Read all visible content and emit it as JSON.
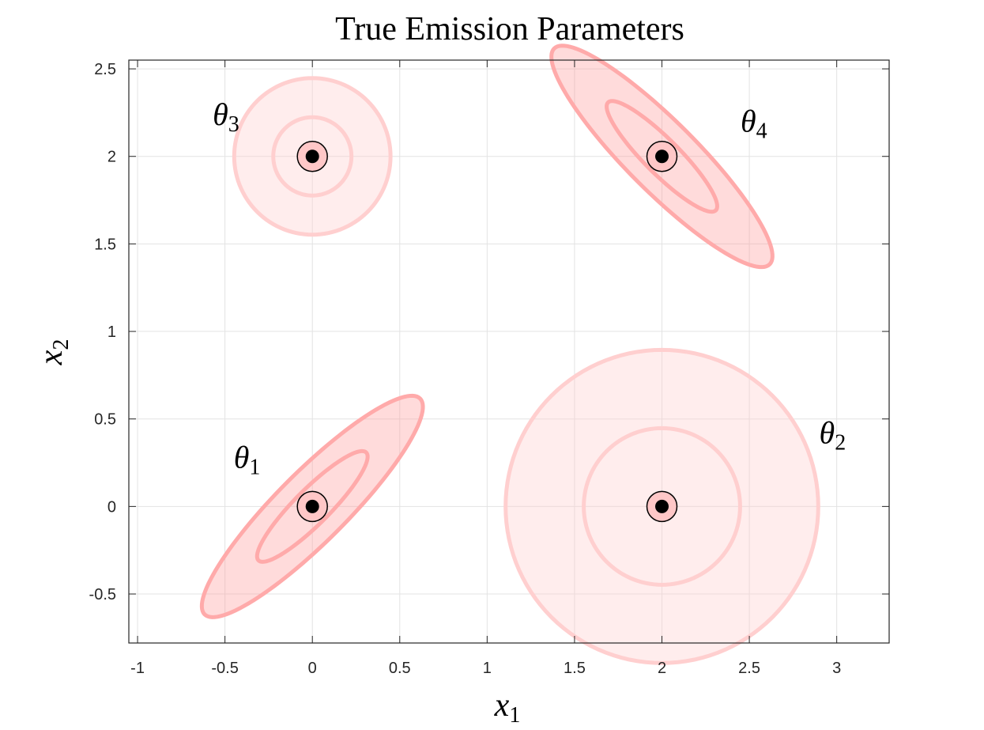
{
  "chart_data": {
    "type": "scatter",
    "title": "True Emission Parameters",
    "xlabel": {
      "base": "x",
      "sub": "1"
    },
    "ylabel": {
      "base": "x",
      "sub": "2"
    },
    "xlim": [
      -1.05,
      3.3
    ],
    "ylim": [
      -0.78,
      2.55
    ],
    "xticks": [
      -1,
      -0.5,
      0,
      0.5,
      1,
      1.5,
      2,
      2.5,
      3
    ],
    "xtick_labels": [
      "-1",
      "-0.5",
      "0",
      "0.5",
      "1",
      "1.5",
      "2",
      "2.5",
      "3"
    ],
    "yticks": [
      -0.5,
      0,
      0.5,
      1,
      1.5,
      2,
      2.5
    ],
    "ytick_labels": [
      "-0.5",
      "0",
      "0.5",
      "1",
      "1.5",
      "2",
      "2.5"
    ],
    "grid": true,
    "components": [
      {
        "name": "θ1",
        "label_base": "θ",
        "label_sub": "1",
        "mean": [
          0,
          0
        ],
        "cov": [
          [
            0.1,
            0.09
          ],
          [
            0.09,
            0.1
          ]
        ],
        "label_pos": [
          -0.45,
          0.22
        ],
        "fill": "#ff9999",
        "stroke": "#ffaaaa"
      },
      {
        "name": "θ2",
        "label_base": "θ",
        "label_sub": "2",
        "mean": [
          2,
          0
        ],
        "cov": [
          [
            0.2,
            0
          ],
          [
            0,
            0.2
          ]
        ],
        "label_pos": [
          2.9,
          0.36
        ],
        "fill": "#ffcccc",
        "stroke": "#ffcfcf"
      },
      {
        "name": "θ3",
        "label_base": "θ",
        "label_sub": "3",
        "mean": [
          0,
          2
        ],
        "cov": [
          [
            0.05,
            0
          ],
          [
            0,
            0.05
          ]
        ],
        "label_pos": [
          -0.57,
          2.18
        ],
        "fill": "#ffcccc",
        "stroke": "#ffcfcf"
      },
      {
        "name": "θ4",
        "label_base": "θ",
        "label_sub": "4",
        "mean": [
          2,
          2
        ],
        "cov": [
          [
            0.1,
            -0.09
          ],
          [
            -0.09,
            0.1
          ]
        ],
        "label_pos": [
          2.45,
          2.14
        ],
        "fill": "#ff9999",
        "stroke": "#ffaaaa"
      }
    ]
  }
}
